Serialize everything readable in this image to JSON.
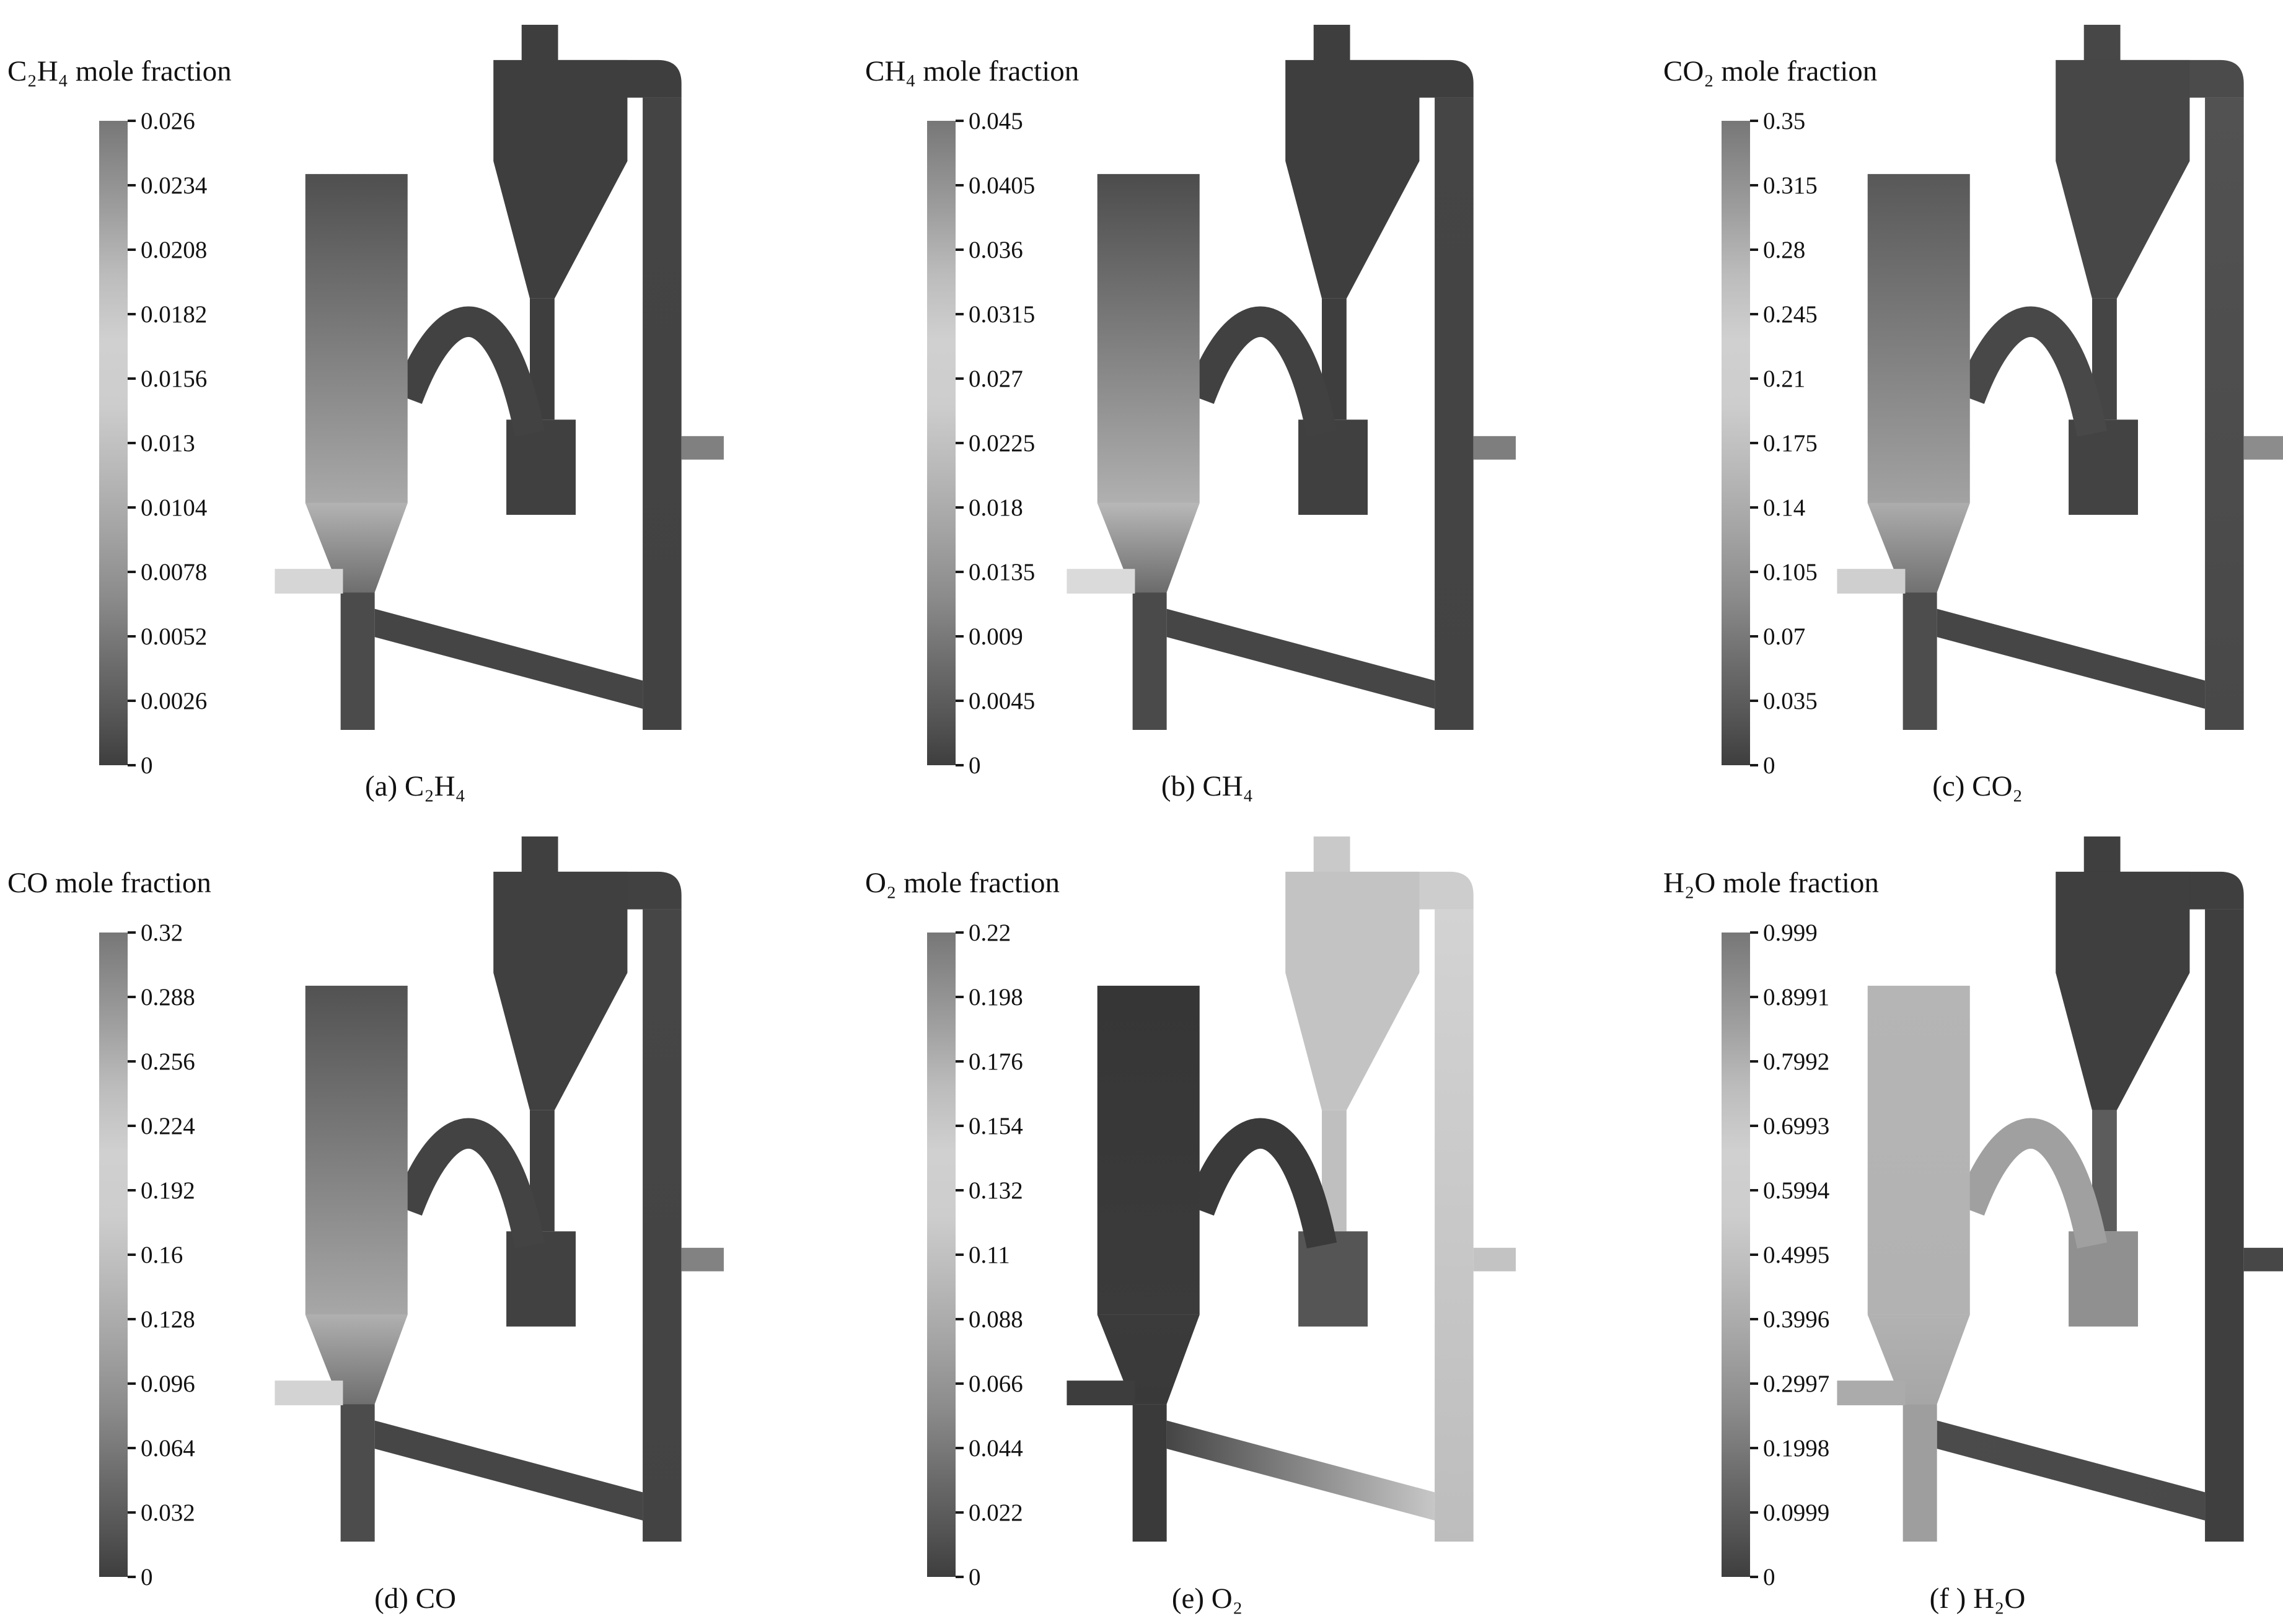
{
  "figure": {
    "colorbar_gradient": [
      [
        "0%",
        "#777777"
      ],
      [
        "6%",
        "#888888"
      ],
      [
        "14%",
        "#9e9e9e"
      ],
      [
        "24%",
        "#bcbcbc"
      ],
      [
        "34%",
        "#d0d0d0"
      ],
      [
        "44%",
        "#cdcdcd"
      ],
      [
        "54%",
        "#b9b9b9"
      ],
      [
        "64%",
        "#a3a3a3"
      ],
      [
        "74%",
        "#8b8b8b"
      ],
      [
        "84%",
        "#6d6d6d"
      ],
      [
        "93%",
        "#545454"
      ],
      [
        "100%",
        "#3e3e3e"
      ]
    ],
    "panels": [
      {
        "id": "a",
        "title": "C₂H₄ mole fraction",
        "caption": "(a) C₂H₄",
        "colorbar_ticks": [
          "0.026",
          "0.0234",
          "0.0208",
          "0.0182",
          "0.0156",
          "0.013",
          "0.0104",
          "0.0078",
          "0.0052",
          "0.0026",
          "0"
        ],
        "palette": {
          "riser_top": "#4f4f4f",
          "riser_bottom": "#a9a9a9",
          "cone_top": "#b3b3b3",
          "cone_bottom": "#6e6e6e",
          "bottom_pipe": "#4b4b4b",
          "inlet": "#d6d6d6",
          "crossover": "#424242",
          "cyclone": "#3e3e3e",
          "dipleg": "#3e3e3e",
          "loopseal": "#404040",
          "top_outlet": "#3e3e3e",
          "duct": "#3e3e3e",
          "stand_top": "#444444",
          "stand_bottom": "#424242",
          "return_left": "#454545",
          "return_right": "#454545",
          "right_outlet": "#808080"
        }
      },
      {
        "id": "b",
        "title": "CH₄ mole fraction",
        "caption": "(b) CH₄",
        "colorbar_ticks": [
          "0.045",
          "0.0405",
          "0.036",
          "0.0315",
          "0.027",
          "0.0225",
          "0.018",
          "0.0135",
          "0.009",
          "0.0045",
          "0"
        ],
        "palette": {
          "riser_top": "#4c4c4c",
          "riser_bottom": "#b0b0b0",
          "cone_top": "#b8b8b8",
          "cone_bottom": "#6b6b6b",
          "bottom_pipe": "#4a4a4a",
          "inlet": "#dadada",
          "crossover": "#414141",
          "cyclone": "#3e3e3e",
          "dipleg": "#3e3e3e",
          "loopseal": "#404040",
          "top_outlet": "#3e3e3e",
          "duct": "#3e3e3e",
          "stand_top": "#454545",
          "stand_bottom": "#434343",
          "return_left": "#464646",
          "return_right": "#464646",
          "right_outlet": "#7e7e7e"
        }
      },
      {
        "id": "c",
        "title": "CO₂ mole fraction",
        "caption": "(c) CO₂",
        "colorbar_ticks": [
          "0.35",
          "0.315",
          "0.28",
          "0.245",
          "0.21",
          "0.175",
          "0.14",
          "0.105",
          "0.07",
          "0.035",
          "0"
        ],
        "palette": {
          "riser_top": "#585858",
          "riser_bottom": "#a2a2a2",
          "cone_top": "#adadad",
          "cone_bottom": "#717171",
          "bottom_pipe": "#4d4d4d",
          "inlet": "#cfcfcf",
          "crossover": "#484848",
          "cyclone": "#474747",
          "dipleg": "#454545",
          "loopseal": "#434343",
          "top_outlet": "#474747",
          "duct": "#4b4b4b",
          "stand_top": "#525252",
          "stand_bottom": "#484848",
          "return_left": "#464646",
          "return_right": "#464646",
          "right_outlet": "#8c8c8c"
        }
      },
      {
        "id": "d",
        "title": "CO mole fraction",
        "caption": "(d) CO",
        "colorbar_ticks": [
          "0.32",
          "0.288",
          "0.256",
          "0.224",
          "0.192",
          "0.16",
          "0.128",
          "0.096",
          "0.064",
          "0.032",
          "0"
        ],
        "palette": {
          "riser_top": "#525252",
          "riser_bottom": "#a7a7a7",
          "cone_top": "#b0b0b0",
          "cone_bottom": "#6f6f6f",
          "bottom_pipe": "#4c4c4c",
          "inlet": "#d3d3d3",
          "crossover": "#434343",
          "cyclone": "#404040",
          "dipleg": "#404040",
          "loopseal": "#414141",
          "top_outlet": "#404040",
          "duct": "#414141",
          "stand_top": "#464646",
          "stand_bottom": "#434343",
          "return_left": "#464646",
          "return_right": "#464646",
          "right_outlet": "#828282"
        }
      },
      {
        "id": "e",
        "title": "O₂ mole fraction",
        "caption": "(e) O₂",
        "colorbar_ticks": [
          "0.22",
          "0.198",
          "0.176",
          "0.154",
          "0.132",
          "0.11",
          "0.088",
          "0.066",
          "0.044",
          "0.022",
          "0"
        ],
        "palette": {
          "riser_top": "#363636",
          "riser_bottom": "#3b3b3b",
          "cone_top": "#3b3b3b",
          "cone_bottom": "#393939",
          "bottom_pipe": "#3a3a3a",
          "inlet": "#3d3d3d",
          "crossover": "#3a3a3a",
          "cyclone": "#c3c3c3",
          "dipleg": "#bfbfbf",
          "loopseal": "#555555",
          "top_outlet": "#c9c9c9",
          "duct": "#cdcdcd",
          "stand_top": "#d3d3d3",
          "stand_bottom": "#bdbdbd",
          "return_left": "#454545",
          "return_right": "#c7c7c7",
          "right_outlet": "#c3c3c3"
        }
      },
      {
        "id": "f",
        "title": "H₂O mole fraction",
        "caption": "(f ) H₂O",
        "colorbar_ticks": [
          "0.999",
          "0.8991",
          "0.7992",
          "0.6993",
          "0.5994",
          "0.4995",
          "0.3996",
          "0.2997",
          "0.1998",
          "0.0999",
          "0"
        ],
        "palette": {
          "riser_top": "#b5b5b5",
          "riser_bottom": "#b2b2b2",
          "cone_top": "#b2b2b2",
          "cone_bottom": "#a6a6a6",
          "bottom_pipe": "#9e9e9e",
          "inlet": "#ababab",
          "crossover": "#a0a0a0",
          "cyclone": "#3f3f3f",
          "dipleg": "#5c5c5c",
          "loopseal": "#909090",
          "top_outlet": "#3f3f3f",
          "duct": "#3f3f3f",
          "stand_top": "#3f3f3f",
          "stand_bottom": "#3f3f3f",
          "return_left": "#4b4b4b",
          "return_right": "#494949",
          "right_outlet": "#474747"
        }
      }
    ]
  },
  "chart_data": [
    {
      "type": "heatmap",
      "title": "C₂H₄ mole fraction",
      "caption": "(a) C₂H₄",
      "species": "C2H4",
      "value_range": [
        0,
        0.026
      ],
      "colorbar_ticks": [
        0.026,
        0.0234,
        0.0208,
        0.0182,
        0.0156,
        0.013,
        0.0104,
        0.0078,
        0.0052,
        0.0026,
        0
      ],
      "colormap": "grayscale rainbow (low=dark, mid=light)",
      "legend_position": "left",
      "notes": "contour over circulating fluidized-bed reactor; elevated values near riser bottom cone and feed inlet, near zero in cyclone/standpipe"
    },
    {
      "type": "heatmap",
      "title": "CH₄ mole fraction",
      "caption": "(b) CH₄",
      "species": "CH4",
      "value_range": [
        0,
        0.045
      ],
      "colorbar_ticks": [
        0.045,
        0.0405,
        0.036,
        0.0315,
        0.027,
        0.0225,
        0.018,
        0.0135,
        0.009,
        0.0045,
        0
      ],
      "colormap": "grayscale rainbow (low=dark, mid=light)",
      "legend_position": "left",
      "notes": "elevated values near riser bottom cone and feed inlet, near zero elsewhere"
    },
    {
      "type": "heatmap",
      "title": "CO₂ mole fraction",
      "caption": "(c) CO₂",
      "species": "CO2",
      "value_range": [
        0,
        0.35
      ],
      "colorbar_ticks": [
        0.35,
        0.315,
        0.28,
        0.245,
        0.21,
        0.175,
        0.14,
        0.105,
        0.07,
        0.035,
        0
      ],
      "colormap": "grayscale rainbow (low=dark, mid=light)",
      "legend_position": "left",
      "notes": "elevated in lower riser, moderate levels carried to cyclone and standpipe"
    },
    {
      "type": "heatmap",
      "title": "CO mole fraction",
      "caption": "(d) CO",
      "species": "CO",
      "value_range": [
        0,
        0.32
      ],
      "colorbar_ticks": [
        0.32,
        0.288,
        0.256,
        0.224,
        0.192,
        0.16,
        0.128,
        0.096,
        0.064,
        0.032,
        0
      ],
      "colormap": "grayscale rainbow (low=dark, mid=light)",
      "legend_position": "left",
      "notes": "elevated in lower riser column, low in cyclone loop"
    },
    {
      "type": "heatmap",
      "title": "O₂ mole fraction",
      "caption": "(e) O₂",
      "species": "O2",
      "value_range": [
        0,
        0.22
      ],
      "colorbar_ticks": [
        0.22,
        0.198,
        0.176,
        0.154,
        0.132,
        0.11,
        0.088,
        0.066,
        0.044,
        0.022,
        0
      ],
      "colormap": "grayscale rainbow (low=dark, mid=light)",
      "legend_position": "left",
      "notes": "near zero in riser (consumed), high in cyclone, outlet duct, standpipe and return leg"
    },
    {
      "type": "heatmap",
      "title": "H₂O mole fraction",
      "caption": "(f ) H₂O",
      "species": "H2O",
      "value_range": [
        0,
        0.999
      ],
      "colorbar_ticks": [
        0.999,
        0.8991,
        0.7992,
        0.6993,
        0.5994,
        0.4995,
        0.3996,
        0.2997,
        0.1998,
        0.0999,
        0
      ],
      "colormap": "grayscale rainbow (low=dark, mid=light)",
      "legend_position": "left",
      "notes": "uniform moderate-high values in riser column, low in cyclone and standpipe"
    }
  ]
}
